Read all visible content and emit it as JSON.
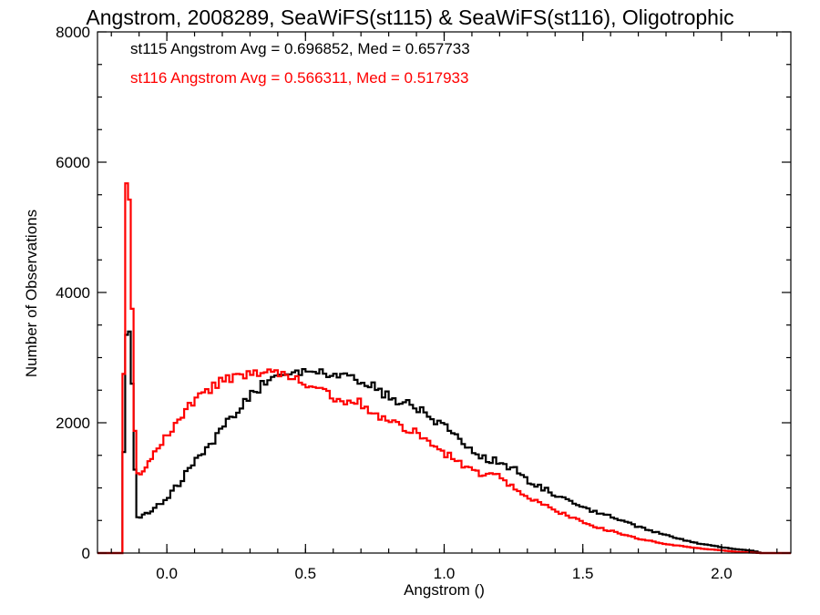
{
  "chart_data": {
    "type": "line",
    "title": "Angstrom, 2008289, SeaWiFS(st115) & SeaWiFS(st116), Oligotrophic",
    "xlabel": "Angstrom ()",
    "ylabel": "Number of Observations",
    "xlim": [
      -0.25,
      2.25
    ],
    "ylim": [
      0,
      8000
    ],
    "x_ticks": [
      "0.0",
      "0.5",
      "1.0",
      "1.5",
      "2.0"
    ],
    "y_ticks": [
      "0",
      "2000",
      "4000",
      "6000",
      "8000"
    ],
    "annotations": [
      {
        "text": "st115 Angstrom Avg = 0.696852, Med = 0.657733",
        "color": "#000000"
      },
      {
        "text": "st116 Angstrom Avg = 0.566311, Med = 0.517933",
        "color": "#ff0000"
      }
    ],
    "series": [
      {
        "color": "#000000",
        "x": [
          -0.25,
          -0.16,
          -0.15,
          -0.14,
          -0.13,
          -0.12,
          -0.11,
          -0.1,
          -0.08,
          -0.05,
          0.0,
          0.05,
          0.1,
          0.15,
          0.2,
          0.25,
          0.3,
          0.35,
          0.4,
          0.45,
          0.5,
          0.55,
          0.6,
          0.65,
          0.7,
          0.75,
          0.8,
          0.85,
          0.9,
          0.95,
          1.0,
          1.05,
          1.1,
          1.15,
          1.2,
          1.25,
          1.3,
          1.35,
          1.4,
          1.45,
          1.5,
          1.55,
          1.6,
          1.7,
          1.8,
          1.9,
          2.0,
          2.05,
          2.1,
          2.13,
          2.14,
          2.25
        ],
        "y": [
          0,
          0,
          3100,
          3600,
          3200,
          2000,
          560,
          540,
          600,
          650,
          850,
          1100,
          1400,
          1650,
          1900,
          2150,
          2400,
          2600,
          2720,
          2780,
          2800,
          2760,
          2720,
          2700,
          2650,
          2550,
          2400,
          2300,
          2250,
          2100,
          1950,
          1800,
          1600,
          1450,
          1400,
          1300,
          1100,
          1000,
          900,
          800,
          720,
          620,
          560,
          400,
          280,
          160,
          90,
          60,
          40,
          20,
          0,
          0
        ]
      },
      {
        "color": "#ff0000",
        "x": [
          -0.25,
          -0.16,
          -0.15,
          -0.14,
          -0.13,
          -0.12,
          -0.11,
          -0.1,
          -0.08,
          -0.05,
          0.0,
          0.05,
          0.1,
          0.15,
          0.2,
          0.25,
          0.3,
          0.35,
          0.4,
          0.45,
          0.5,
          0.55,
          0.6,
          0.65,
          0.7,
          0.75,
          0.8,
          0.85,
          0.9,
          0.95,
          1.0,
          1.05,
          1.1,
          1.15,
          1.2,
          1.25,
          1.3,
          1.35,
          1.4,
          1.45,
          1.5,
          1.55,
          1.6,
          1.7,
          1.8,
          1.9,
          2.0,
          2.05,
          2.1,
          2.14,
          2.25
        ],
        "y": [
          0,
          0,
          5500,
          5850,
          5000,
          2500,
          1250,
          1200,
          1300,
          1500,
          1800,
          2100,
          2350,
          2500,
          2650,
          2720,
          2750,
          2800,
          2780,
          2720,
          2620,
          2500,
          2400,
          2320,
          2300,
          2100,
          2000,
          1950,
          1850,
          1700,
          1550,
          1380,
          1280,
          1200,
          1180,
          1000,
          830,
          760,
          650,
          570,
          480,
          400,
          340,
          220,
          140,
          80,
          40,
          20,
          8,
          0,
          0
        ]
      }
    ]
  }
}
